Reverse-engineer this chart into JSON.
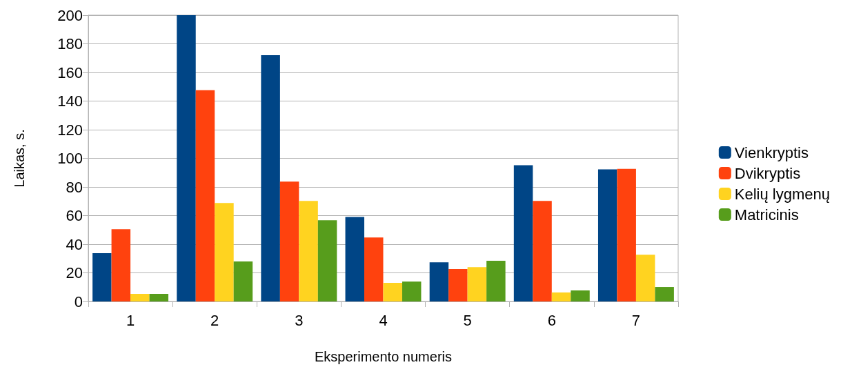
{
  "chart_data": {
    "type": "bar",
    "xlabel": "Eksperimento numeris",
    "ylabel": "Laikas, s.",
    "categories": [
      "1",
      "2",
      "3",
      "4",
      "5",
      "6",
      "7"
    ],
    "series": [
      {
        "name": "Vienkryptis",
        "color": "#004586",
        "values": [
          33.7,
          200,
          172,
          59,
          27.4,
          95.2,
          92.3
        ]
      },
      {
        "name": "Dvikryptis",
        "color": "#ff420e",
        "values": [
          50.5,
          147.6,
          83.7,
          44.7,
          22.6,
          70.2,
          92.6
        ]
      },
      {
        "name": "Kelių lygmenų",
        "color": "#ffd320",
        "values": [
          5.3,
          68.8,
          70.2,
          13,
          24,
          6.3,
          32.7
        ]
      },
      {
        "name": "Matricinis",
        "color": "#579d1c",
        "values": [
          5.3,
          27.9,
          56.7,
          13.9,
          28.4,
          7.7,
          10.1
        ]
      }
    ],
    "ylim": [
      0,
      200
    ],
    "yticks": [
      0,
      20,
      40,
      60,
      80,
      100,
      120,
      140,
      160,
      180,
      200
    ],
    "grid": "y",
    "legend": "right"
  }
}
